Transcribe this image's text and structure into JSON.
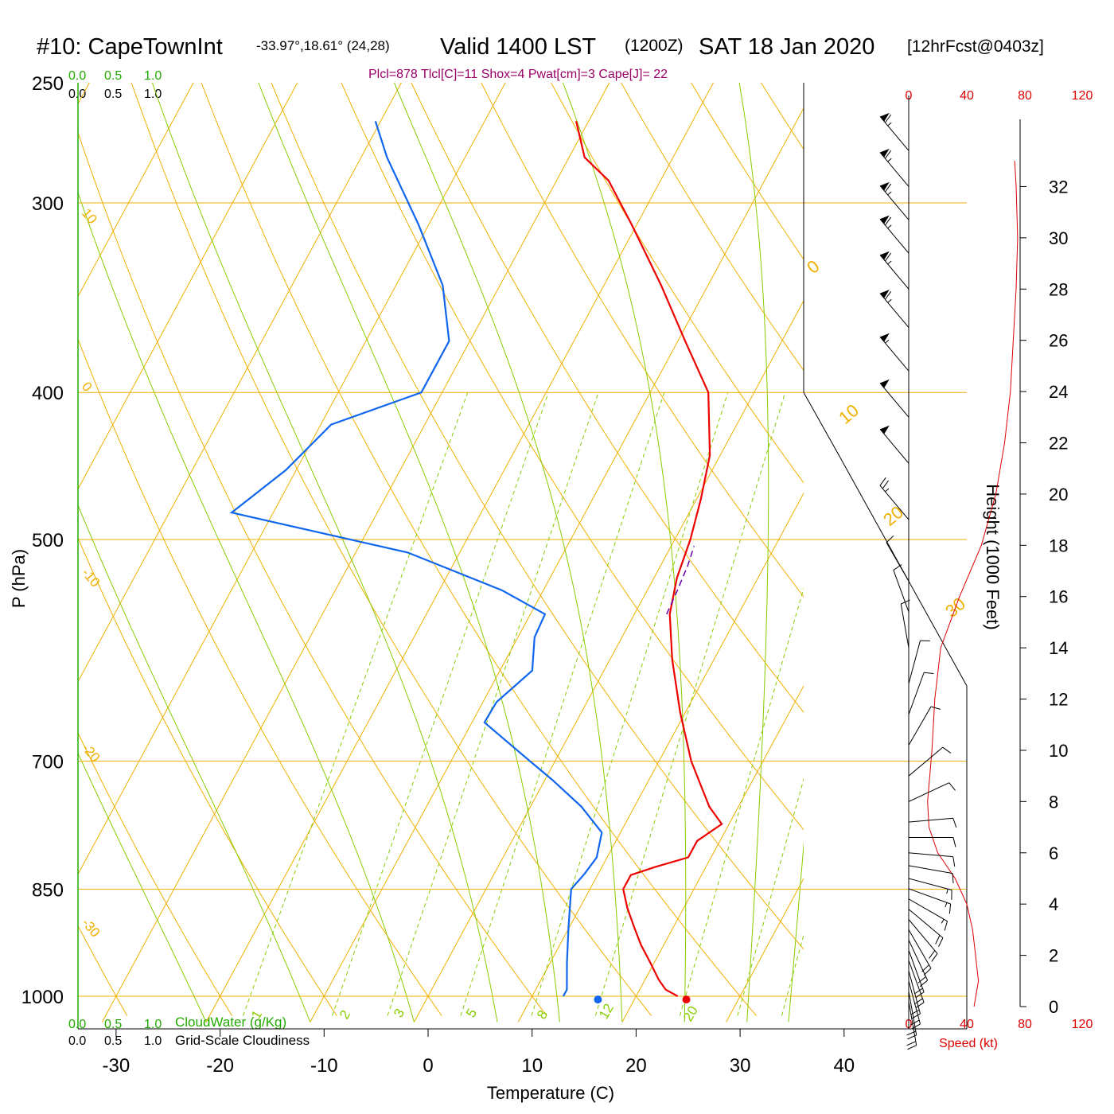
{
  "header": {
    "station": "#10: CapeTownInt",
    "coords": "-33.97°,18.61° (24,28)",
    "valid": "Valid 1400 LST",
    "utc": "(1200Z)",
    "date": "SAT 18 Jan 2020",
    "forecast": "[12hrFcst@0403z]",
    "indices": "Plcl=878 Tlcl[C]=11 Shox=4 Pwat[cm]=3 Cape[J]= 22"
  },
  "colors": {
    "temperature": "#ee0000",
    "dewpoint": "#1166ee",
    "isotherm_isobar": "#f0b000",
    "moist_adiabat": "#88cc00",
    "mixing_ratio": "#88cc00",
    "green_label": "#22aa00",
    "indices": "#990066",
    "parcel": "#6600aa",
    "speed": "#dd0000"
  },
  "cloud_scales": {
    "top_green": [
      "0.0",
      "0.5",
      "1.0"
    ],
    "top_black": [
      "0.0",
      "0.5",
      "1.0"
    ],
    "bottom_green": [
      "0.0",
      "0.5",
      "1.0"
    ],
    "bottom_green_label": "CloudWater (g/Kg)",
    "bottom_black": [
      "0.0",
      "0.5",
      "1.0"
    ],
    "bottom_black_label": "Grid-Scale Cloudiness"
  },
  "speed_axis": {
    "top_ticks": [
      "0",
      "40",
      "80",
      "120"
    ],
    "bottom_ticks": [
      "0",
      "40",
      "80",
      "120"
    ],
    "label": "Speed (kt)"
  },
  "chart_data": {
    "type": "line",
    "subtype": "skew-T log-P sounding",
    "xlabel": "Temperature (C)",
    "ylabel": "P (hPa)",
    "y2label": "Height (1000 Feet)",
    "xlim": [
      -34,
      46
    ],
    "ylim": [
      1030,
      250
    ],
    "y_scale": "log",
    "x_ticks": [
      -30,
      -20,
      -10,
      0,
      10,
      20,
      30,
      40
    ],
    "pressure_labels": [
      250,
      300,
      400,
      500,
      700,
      850,
      1000
    ],
    "height_ticks": [
      0,
      2,
      4,
      6,
      8,
      10,
      12,
      14,
      16,
      18,
      20,
      22,
      24,
      26,
      28,
      30,
      32
    ],
    "isotherm_labels": [
      "10",
      "0",
      "-10",
      "-20",
      "-30"
    ],
    "dry_adiabat_labels": [
      "0",
      "10",
      "20",
      "30"
    ],
    "mixing_ratio_labels": [
      "1",
      "2",
      "3",
      "5",
      "8",
      "12",
      "20"
    ],
    "temperature": [
      {
        "p": 1000,
        "t": 24.0
      },
      {
        "p": 990,
        "t": 22.5
      },
      {
        "p": 975,
        "t": 21.3
      },
      {
        "p": 950,
        "t": 19.6
      },
      {
        "p": 925,
        "t": 17.8
      },
      {
        "p": 900,
        "t": 16.2
      },
      {
        "p": 875,
        "t": 14.6
      },
      {
        "p": 850,
        "t": 13.2
      },
      {
        "p": 832,
        "t": 13.2
      },
      {
        "p": 822,
        "t": 15.1
      },
      {
        "p": 810,
        "t": 17.8
      },
      {
        "p": 790,
        "t": 17.8
      },
      {
        "p": 770,
        "t": 19.3
      },
      {
        "p": 750,
        "t": 17.2
      },
      {
        "p": 700,
        "t": 13.1
      },
      {
        "p": 650,
        "t": 9.5
      },
      {
        "p": 600,
        "t": 6.0
      },
      {
        "p": 560,
        "t": 3.4
      },
      {
        "p": 530,
        "t": 2.2
      },
      {
        "p": 500,
        "t": 1.5
      },
      {
        "p": 470,
        "t": 0.4
      },
      {
        "p": 440,
        "t": -1.0
      },
      {
        "p": 400,
        "t": -4.4
      },
      {
        "p": 370,
        "t": -9.3
      },
      {
        "p": 340,
        "t": -14.5
      },
      {
        "p": 310,
        "t": -20.5
      },
      {
        "p": 290,
        "t": -25.0
      },
      {
        "p": 280,
        "t": -28.5
      },
      {
        "p": 265,
        "t": -31.2
      }
    ],
    "dewpoint": [
      {
        "p": 1000,
        "td": 13.0
      },
      {
        "p": 990,
        "td": 13.0
      },
      {
        "p": 950,
        "td": 11.6
      },
      {
        "p": 900,
        "td": 9.9
      },
      {
        "p": 850,
        "td": 8.2
      },
      {
        "p": 830,
        "td": 8.7
      },
      {
        "p": 810,
        "td": 9.0
      },
      {
        "p": 780,
        "td": 8.2
      },
      {
        "p": 750,
        "td": 4.9
      },
      {
        "p": 720,
        "td": 0.7
      },
      {
        "p": 700,
        "td": -2.4
      },
      {
        "p": 660,
        "td": -8.8
      },
      {
        "p": 640,
        "td": -8.7
      },
      {
        "p": 610,
        "td": -6.9
      },
      {
        "p": 580,
        "td": -8.4
      },
      {
        "p": 560,
        "td": -8.6
      },
      {
        "p": 540,
        "td": -14.0
      },
      {
        "p": 510,
        "td": -25.0
      },
      {
        "p": 480,
        "td": -44.0
      },
      {
        "p": 450,
        "td": -41.0
      },
      {
        "p": 420,
        "td": -39.0
      },
      {
        "p": 400,
        "td": -32.0
      },
      {
        "p": 370,
        "td": -32.0
      },
      {
        "p": 340,
        "td": -35.5
      },
      {
        "p": 310,
        "td": -41.0
      },
      {
        "p": 280,
        "td": -47.5
      },
      {
        "p": 265,
        "td": -50.5
      }
    ],
    "parcel": [
      {
        "p": 560,
        "t": 3.1
      },
      {
        "p": 540,
        "t": 2.9
      },
      {
        "p": 520,
        "t": 2.6
      },
      {
        "p": 505,
        "t": 2.2
      }
    ],
    "surface_marks": [
      {
        "series": "temperature",
        "p": 1005,
        "t": 25.0
      },
      {
        "series": "dewpoint",
        "p": 1005,
        "td": 16.5
      }
    ],
    "wind_speed_profile": [
      {
        "h": 0,
        "spd": 45
      },
      {
        "h": 1,
        "spd": 48
      },
      {
        "h": 2,
        "spd": 46
      },
      {
        "h": 3,
        "spd": 44
      },
      {
        "h": 4,
        "spd": 40
      },
      {
        "h": 5,
        "spd": 32
      },
      {
        "h": 6,
        "spd": 20
      },
      {
        "h": 7,
        "spd": 14
      },
      {
        "h": 8,
        "spd": 13
      },
      {
        "h": 10,
        "spd": 16
      },
      {
        "h": 12,
        "spd": 18
      },
      {
        "h": 14,
        "spd": 22
      },
      {
        "h": 16,
        "spd": 35
      },
      {
        "h": 18,
        "spd": 50
      },
      {
        "h": 20,
        "spd": 60
      },
      {
        "h": 22,
        "spd": 66
      },
      {
        "h": 24,
        "spd": 70
      },
      {
        "h": 26,
        "spd": 72
      },
      {
        "h": 28,
        "spd": 74
      },
      {
        "h": 30,
        "spd": 75
      },
      {
        "h": 32,
        "spd": 74
      },
      {
        "h": 33,
        "spd": 73
      }
    ],
    "wind_barbs": [
      {
        "h": 0.2,
        "dir": 170,
        "spd": 20
      },
      {
        "h": 0.6,
        "dir": 170,
        "spd": 20
      },
      {
        "h": 1.0,
        "dir": 165,
        "spd": 20
      },
      {
        "h": 1.4,
        "dir": 165,
        "spd": 20
      },
      {
        "h": 1.8,
        "dir": 160,
        "spd": 20
      },
      {
        "h": 2.2,
        "dir": 160,
        "spd": 20
      },
      {
        "h": 2.6,
        "dir": 155,
        "spd": 20
      },
      {
        "h": 3.0,
        "dir": 150,
        "spd": 20
      },
      {
        "h": 3.4,
        "dir": 140,
        "spd": 20
      },
      {
        "h": 3.8,
        "dir": 130,
        "spd": 20
      },
      {
        "h": 4.2,
        "dir": 120,
        "spd": 15
      },
      {
        "h": 4.6,
        "dir": 110,
        "spd": 15
      },
      {
        "h": 5.0,
        "dir": 105,
        "spd": 15
      },
      {
        "h": 5.5,
        "dir": 100,
        "spd": 10
      },
      {
        "h": 6.0,
        "dir": 95,
        "spd": 10
      },
      {
        "h": 6.6,
        "dir": 90,
        "spd": 10
      },
      {
        "h": 7.2,
        "dir": 85,
        "spd": 10
      },
      {
        "h": 8.0,
        "dir": 65,
        "spd": 10
      },
      {
        "h": 9.0,
        "dir": 50,
        "spd": 10
      },
      {
        "h": 10.2,
        "dir": 30,
        "spd": 10
      },
      {
        "h": 11.4,
        "dir": 20,
        "spd": 10
      },
      {
        "h": 12.6,
        "dir": 15,
        "spd": 10
      },
      {
        "h": 14.0,
        "dir": 350,
        "spd": 10
      },
      {
        "h": 15.4,
        "dir": 340,
        "spd": 10
      },
      {
        "h": 16.6,
        "dir": 330,
        "spd": 10
      },
      {
        "h": 19.0,
        "dir": 320,
        "spd": 25
      },
      {
        "h": 21.2,
        "dir": 320,
        "spd": 50
      },
      {
        "h": 23.0,
        "dir": 320,
        "spd": 50
      },
      {
        "h": 24.8,
        "dir": 320,
        "spd": 55
      },
      {
        "h": 26.5,
        "dir": 320,
        "spd": 65
      },
      {
        "h": 28.0,
        "dir": 320,
        "spd": 65
      },
      {
        "h": 29.4,
        "dir": 320,
        "spd": 65
      },
      {
        "h": 30.7,
        "dir": 320,
        "spd": 65
      },
      {
        "h": 32.0,
        "dir": 320,
        "spd": 65
      },
      {
        "h": 33.4,
        "dir": 320,
        "spd": 65
      }
    ]
  }
}
